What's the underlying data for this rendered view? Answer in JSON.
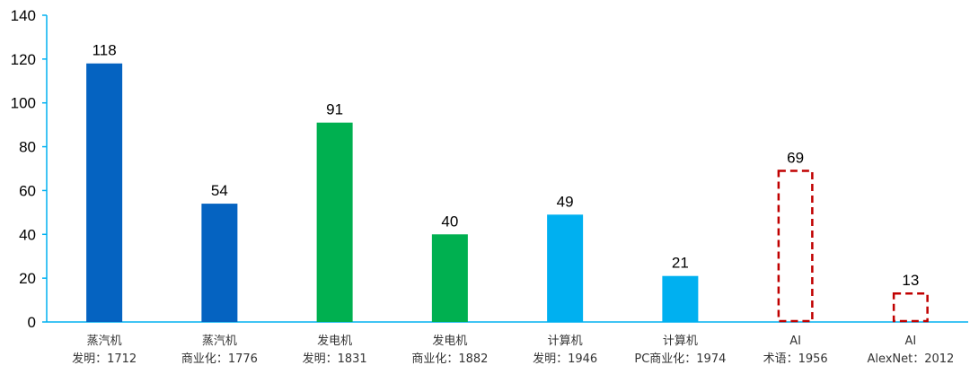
{
  "chart_data": {
    "type": "bar",
    "title": "",
    "xlabel": "",
    "ylabel": "",
    "ylim": [
      0,
      140
    ],
    "yticks": [
      0,
      20,
      40,
      60,
      80,
      100,
      120,
      140
    ],
    "grid": false,
    "legend": "none",
    "bars": [
      {
        "line1": "蒸汽机",
        "line2": "发明：1712",
        "value": 118,
        "color": "#0563C1",
        "style": "solid"
      },
      {
        "line1": "蒸汽机",
        "line2": "商业化：1776",
        "value": 54,
        "color": "#0563C1",
        "style": "solid"
      },
      {
        "line1": "发电机",
        "line2": "发明：1831",
        "value": 91,
        "color": "#00B050",
        "style": "solid"
      },
      {
        "line1": "发电机",
        "line2": "商业化：1882",
        "value": 40,
        "color": "#00B050",
        "style": "solid"
      },
      {
        "line1": "计算机",
        "line2": "发明：1946",
        "value": 49,
        "color": "#00B0F0",
        "style": "solid"
      },
      {
        "line1": "计算机",
        "line2": "PC商业化：1974",
        "value": 21,
        "color": "#00B0F0",
        "style": "solid"
      },
      {
        "line1": "AI",
        "line2": "术语：1956",
        "value": 69,
        "color": "#C00000",
        "style": "dashed"
      },
      {
        "line1": "AI",
        "line2": "AlexNet：2012",
        "value": 13,
        "color": "#C00000",
        "style": "dashed"
      }
    ]
  }
}
